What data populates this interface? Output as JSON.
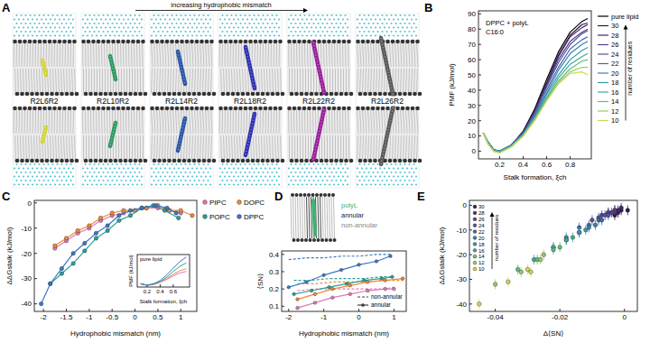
{
  "chart_data": [
    {
      "type": "image",
      "title": "A",
      "annotation": "increasing hydrophobic mismatch",
      "labels": [
        "R2L6R2",
        "R2L10R2",
        "R2L14R2",
        "R2L18R2",
        "R2L22R2",
        "R2L26R2"
      ],
      "colors": [
        "#d6d435",
        "#2e9a62",
        "#2a55a8",
        "#2f32b0",
        "#9a1f9a",
        "#5a5a5a"
      ]
    },
    {
      "type": "line",
      "title": "B",
      "x_label": "Stalk formation, ξch",
      "y_label": "PMF (kJ/mol)",
      "annotations": [
        "DPPC + polyL",
        "C16:0"
      ],
      "legend": "right",
      "legend_title": "number of residues",
      "x": [
        0.06,
        0.1,
        0.15,
        0.2,
        0.3,
        0.4,
        0.5,
        0.6,
        0.7,
        0.8,
        0.9,
        0.95
      ],
      "xlim": [
        0.02,
        0.98
      ],
      "xticks": [
        0.2,
        0.4,
        0.6,
        0.8
      ],
      "ylim": [
        -5,
        92
      ],
      "yticks": [
        0,
        10,
        20,
        30,
        40,
        50,
        60,
        70,
        80,
        90
      ],
      "series": [
        {
          "name": "pure lipid",
          "color": "#000000",
          "values": [
            12,
            6,
            1,
            0,
            4,
            13,
            28,
            47,
            65,
            78,
            85,
            87
          ]
        },
        {
          "name": "30",
          "color": "#2b1a47",
          "values": [
            12,
            6,
            1,
            0,
            4,
            13,
            27,
            45,
            63,
            76,
            83,
            84
          ]
        },
        {
          "name": "28",
          "color": "#45246b",
          "values": [
            12,
            6,
            1,
            0,
            4,
            12,
            26,
            44,
            62,
            75,
            81,
            83
          ]
        },
        {
          "name": "26",
          "color": "#5a3a8e",
          "values": [
            12,
            6,
            1,
            0,
            4,
            12,
            26,
            43,
            60,
            72,
            78,
            80
          ]
        },
        {
          "name": "24",
          "color": "#4c559e",
          "values": [
            12,
            6,
            1,
            0,
            4,
            12,
            25,
            42,
            58,
            70,
            77,
            79
          ]
        },
        {
          "name": "22",
          "color": "#3f6aa8",
          "values": [
            12,
            6,
            1,
            0,
            4,
            12,
            24,
            40,
            55,
            67,
            73,
            75
          ]
        },
        {
          "name": "20",
          "color": "#3a80b0",
          "values": [
            12,
            6,
            1,
            0,
            4,
            11,
            23,
            38,
            53,
            64,
            70,
            72
          ]
        },
        {
          "name": "18",
          "color": "#3697ab",
          "values": [
            12,
            6,
            1,
            0,
            4,
            11,
            22,
            37,
            50,
            60,
            66,
            68
          ]
        },
        {
          "name": "16",
          "color": "#42aa96",
          "values": [
            12,
            5,
            1,
            0,
            3,
            11,
            22,
            35,
            48,
            57,
            62,
            64
          ]
        },
        {
          "name": "14",
          "color": "#63bc80",
          "values": [
            12,
            5,
            0,
            -1,
            3,
            10,
            21,
            34,
            46,
            54,
            59,
            60
          ]
        },
        {
          "name": "12",
          "color": "#97cc66",
          "values": [
            12,
            5,
            0,
            -1,
            3,
            10,
            21,
            33,
            45,
            52,
            55,
            55
          ]
        },
        {
          "name": "10",
          "color": "#cfd85a",
          "values": [
            12,
            5,
            0,
            -1,
            3,
            10,
            20,
            33,
            44,
            51,
            52,
            50
          ]
        }
      ]
    },
    {
      "type": "line",
      "title": "C",
      "x_label": "Hydrophobic mismatch (nm)",
      "y_label": "ΔΔGstalk (kJ/mol)",
      "legend": "right",
      "xlim": [
        -2.2,
        1.35
      ],
      "xticks": [
        -2,
        -1.5,
        -1,
        -0.5,
        0,
        0.5,
        1
      ],
      "ylim": [
        -43,
        1
      ],
      "yticks": [
        -40,
        -30,
        -20,
        -10,
        0
      ],
      "series": [
        {
          "name": "PIPC",
          "color": "#e07bb5",
          "marker": "circle",
          "x": [
            -1.75,
            -1.5,
            -1.25,
            -1,
            -0.75,
            -0.5,
            -0.25,
            0,
            0.25,
            0.5,
            0.75,
            1
          ],
          "values": [
            -18,
            -15,
            -12,
            -10,
            -7,
            -5,
            -4,
            -3,
            -2,
            -2,
            -3,
            -4
          ]
        },
        {
          "name": "DOPC",
          "color": "#f08a3c",
          "marker": "circle",
          "x": [
            -1.75,
            -1.5,
            -1.25,
            -1,
            -0.75,
            -0.5,
            -0.25,
            0,
            0.25,
            0.5,
            0.75,
            1,
            1.25
          ],
          "values": [
            -17,
            -14,
            -11,
            -9,
            -6,
            -4,
            -3,
            -3,
            -2,
            -1,
            -3,
            -3,
            -5
          ]
        },
        {
          "name": "POPC",
          "color": "#2aa198",
          "marker": "circle",
          "x": [
            -1.85,
            -1.6,
            -1.35,
            -1.1,
            -0.85,
            -0.6,
            -0.35,
            -0.1,
            0.15,
            0.4,
            0.65,
            0.95
          ],
          "values": [
            -32,
            -28,
            -24,
            -19,
            -14,
            -11,
            -7,
            -5,
            -2,
            -1,
            -3,
            -6
          ]
        },
        {
          "name": "DPPC",
          "color": "#3a78c8",
          "marker": "circle",
          "x": [
            -2.05,
            -1.85,
            -1.6,
            -1.35,
            -1.1,
            -0.85,
            -0.6,
            -0.35,
            -0.1,
            0.15,
            0.45,
            0.7,
            0.9
          ],
          "values": [
            -40,
            -32,
            -26,
            -20,
            -16,
            -12,
            -9,
            -5,
            -3,
            -2,
            -1,
            -2,
            -4
          ]
        }
      ]
    },
    {
      "type": "line",
      "annotation": "pure lipid",
      "x_label": "Stalk formation, ξch",
      "y_label": "PMF (kJ/mol)",
      "tick_labels": "x",
      "x": [
        0.1,
        0.2,
        0.3,
        0.4,
        0.5,
        0.6,
        0.7,
        0.8
      ],
      "xlim": [
        0.05,
        0.85
      ],
      "xticks": [
        0.2,
        0.4,
        0.6
      ],
      "ylim": [
        -5,
        85
      ],
      "series": [
        {
          "color": "#e07bb5",
          "values": [
            4,
            0,
            2,
            8,
            16,
            26,
            34,
            38
          ]
        },
        {
          "color": "#f08a3c",
          "values": [
            4,
            0,
            3,
            9,
            18,
            30,
            40,
            46
          ]
        },
        {
          "color": "#2aa198",
          "values": [
            4,
            0,
            3,
            10,
            22,
            38,
            52,
            62
          ]
        },
        {
          "color": "#3a78c8",
          "values": [
            4,
            0,
            4,
            13,
            28,
            47,
            65,
            78
          ]
        }
      ]
    },
    {
      "type": "line",
      "title": "D",
      "x_label": "Hydrophobic mismatch (nm)",
      "y_label": "⟨SN⟩",
      "annotations": [
        "polyL",
        "annular",
        "non-annular"
      ],
      "legend": "lower right",
      "xlim": [
        -2.2,
        1.35
      ],
      "xticks": [
        -2,
        -1,
        0,
        1
      ],
      "ylim": [
        0.07,
        0.42
      ],
      "yticks": [
        0.1,
        0.2,
        0.3,
        0.4
      ],
      "series": [
        {
          "name": "non-annular",
          "color": "#3a78c8",
          "line_style": "dashed",
          "x": [
            -2,
            -1.5,
            -1,
            -0.5,
            0,
            0.5,
            0.9
          ],
          "values": [
            0.37,
            0.38,
            0.38,
            0.39,
            0.39,
            0.4,
            0.4
          ]
        },
        {
          "name": "non-annular",
          "color": "#2aa198",
          "line_style": "dashed",
          "x": [
            -1.85,
            -1.35,
            -0.85,
            -0.35,
            0.15,
            0.65,
            0.95
          ],
          "values": [
            0.25,
            0.25,
            0.26,
            0.26,
            0.26,
            0.27,
            0.27
          ]
        },
        {
          "name": "non-annular",
          "color": "#f08a3c",
          "line_style": "dashed",
          "x": [
            -1.75,
            -1.25,
            -0.75,
            -0.25,
            0.25,
            0.75,
            1.25
          ],
          "values": [
            0.23,
            0.23,
            0.24,
            0.24,
            0.24,
            0.25,
            0.25
          ]
        },
        {
          "name": "non-annular",
          "color": "#e07bb5",
          "line_style": "dashed",
          "x": [
            -1.75,
            -1.25,
            -0.75,
            -0.25,
            0.25,
            0.75,
            1
          ],
          "values": [
            0.19,
            0.2,
            0.2,
            0.2,
            0.2,
            0.2,
            0.21
          ]
        },
        {
          "name": "annular",
          "color": "#3a78c8",
          "line_style": "solid",
          "marker": "circle",
          "x": [
            -2,
            -1.5,
            -1,
            -0.5,
            0,
            0.5,
            0.9
          ],
          "values": [
            0.21,
            0.24,
            0.28,
            0.31,
            0.34,
            0.36,
            0.39
          ]
        },
        {
          "name": "annular",
          "color": "#2aa198",
          "line_style": "solid",
          "marker": "circle",
          "x": [
            -1.85,
            -1.35,
            -0.85,
            -0.35,
            0.15,
            0.65,
            0.95
          ],
          "values": [
            0.17,
            0.19,
            0.21,
            0.23,
            0.25,
            0.26,
            0.27
          ]
        },
        {
          "name": "annular",
          "color": "#f08a3c",
          "line_style": "solid",
          "marker": "circle",
          "x": [
            -1.75,
            -1.25,
            -0.75,
            -0.25,
            0.25,
            0.75,
            1.25
          ],
          "values": [
            0.14,
            0.17,
            0.2,
            0.22,
            0.24,
            0.25,
            0.26
          ]
        },
        {
          "name": "annular",
          "color": "#e07bb5",
          "line_style": "solid",
          "marker": "circle",
          "x": [
            -1.75,
            -1.25,
            -0.75,
            -0.25,
            0.25,
            0.75,
            1
          ],
          "values": [
            0.09,
            0.12,
            0.15,
            0.17,
            0.19,
            0.2,
            0.2
          ]
        }
      ]
    },
    {
      "type": "scatter",
      "title": "E",
      "x_label": "Δ⟨SN⟩",
      "y_label": "ΔΔGstalk (kJ/mol)",
      "legend": "upper left",
      "legend_title": "number of residues",
      "xlim": [
        -0.048,
        0.004
      ],
      "xticks": [
        -0.04,
        -0.02,
        0
      ],
      "ylim": [
        -43,
        2
      ],
      "yticks": [
        -40,
        -30,
        -20,
        -10,
        0
      ],
      "series": [
        {
          "name": "30",
          "color": "#2b1a47",
          "marker": "circle",
          "x": [
            -0.003,
            -0.002,
            -0.001,
            0.001
          ],
          "values": [
            -4,
            -3,
            -2,
            -2
          ],
          "errors": [
            2,
            2,
            2,
            2
          ]
        },
        {
          "name": "28",
          "color": "#45246b",
          "marker": "circle",
          "x": [
            -0.005,
            -0.003,
            -0.002,
            -0.001
          ],
          "values": [
            -3,
            -2,
            -2,
            -1
          ],
          "errors": [
            2,
            2,
            2,
            2
          ]
        },
        {
          "name": "26",
          "color": "#5a3a8e",
          "marker": "circle",
          "x": [
            -0.007,
            -0.005,
            -0.004,
            -0.003
          ],
          "values": [
            -4,
            -3,
            -3,
            -2
          ],
          "errors": [
            2,
            2,
            2,
            2
          ]
        },
        {
          "name": "24",
          "color": "#4c559e",
          "marker": "circle",
          "x": [
            -0.01,
            -0.008,
            -0.006,
            -0.005
          ],
          "values": [
            -6,
            -5,
            -4,
            -4
          ],
          "errors": [
            2,
            2,
            2,
            2
          ]
        },
        {
          "name": "22",
          "color": "#3f6aa8",
          "marker": "circle",
          "x": [
            -0.014,
            -0.011,
            -0.008,
            -0.007
          ],
          "values": [
            -9,
            -8,
            -6,
            -6
          ],
          "errors": [
            2,
            2,
            2,
            2
          ]
        },
        {
          "name": "20",
          "color": "#3a80b0",
          "marker": "circle",
          "x": [
            -0.018,
            -0.014,
            -0.011,
            -0.009
          ],
          "values": [
            -13,
            -11,
            -9,
            -8
          ],
          "errors": [
            2,
            2,
            2,
            2
          ]
        },
        {
          "name": "18",
          "color": "#3697ab",
          "marker": "circle",
          "x": [
            -0.022,
            -0.018,
            -0.014,
            -0.012
          ],
          "values": [
            -17,
            -14,
            -11,
            -10
          ],
          "errors": [
            2,
            2,
            2,
            2
          ]
        },
        {
          "name": "16",
          "color": "#42aa96",
          "marker": "circle",
          "x": [
            -0.028,
            -0.022,
            -0.018,
            -0.016
          ],
          "values": [
            -22,
            -17,
            -14,
            -13
          ],
          "errors": [
            2,
            2,
            2,
            2
          ]
        },
        {
          "name": "14",
          "color": "#63bc80",
          "marker": "circle",
          "x": [
            -0.033,
            -0.027,
            -0.022,
            -0.02
          ],
          "values": [
            -26,
            -22,
            -18,
            -17
          ],
          "errors": [
            2,
            2,
            2,
            2
          ]
        },
        {
          "name": "12",
          "color": "#97cc66",
          "marker": "circle",
          "x": [
            -0.04,
            -0.032,
            -0.026,
            -0.025
          ],
          "values": [
            -32,
            -27,
            -22,
            -20
          ],
          "errors": [
            2,
            2,
            2,
            2
          ]
        },
        {
          "name": "10",
          "color": "#cfd85a",
          "marker": "circle",
          "x": [
            -0.045,
            -0.036,
            -0.03,
            -0.029
          ],
          "values": [
            -40,
            -31,
            -26,
            -27
          ],
          "errors": [
            2,
            2,
            2,
            2
          ]
        }
      ]
    }
  ]
}
